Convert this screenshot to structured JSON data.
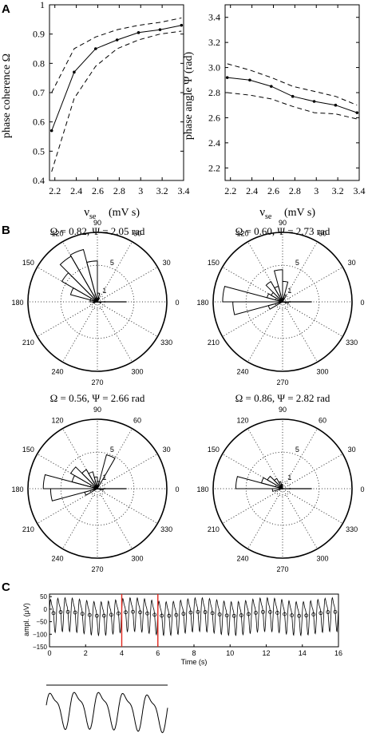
{
  "panel_labels": [
    "A",
    "B",
    "C"
  ],
  "chart_data": [
    {
      "id": "A-left",
      "type": "line",
      "xlabel": "ν",
      "xlabel_sub": "se",
      "xlabel_unit": "(mV s)",
      "ylabel": "phase coherence Ω",
      "xlim": [
        2.15,
        3.4
      ],
      "ylim": [
        0.4,
        1.0
      ],
      "xticks": [
        2.2,
        2.4,
        2.6,
        2.8,
        3.0,
        3.2,
        3.4
      ],
      "xtick_labels": [
        "2.2",
        "2.4",
        "2.6",
        "2.8",
        "3",
        "3.2",
        "3.4"
      ],
      "yticks": [
        0.4,
        0.5,
        0.6,
        0.7,
        0.8,
        0.9,
        1.0
      ],
      "ytick_labels": [
        "0.4",
        "0.5",
        "0.6",
        "0.7",
        "0.8",
        "0.9",
        "1"
      ],
      "x": [
        2.17,
        2.38,
        2.58,
        2.78,
        2.98,
        3.18,
        3.38
      ],
      "series": [
        {
          "style": "solid",
          "markers": true,
          "values": [
            0.57,
            0.77,
            0.85,
            0.88,
            0.905,
            0.915,
            0.93
          ]
        },
        {
          "style": "dashed",
          "markers": false,
          "values": [
            0.7,
            0.85,
            0.89,
            0.915,
            0.93,
            0.94,
            0.955
          ]
        },
        {
          "style": "dashed",
          "markers": false,
          "values": [
            0.43,
            0.68,
            0.79,
            0.85,
            0.88,
            0.9,
            0.91
          ]
        }
      ]
    },
    {
      "id": "A-right",
      "type": "line",
      "xlabel": "ν",
      "xlabel_sub": "se",
      "xlabel_unit": "(mV s)",
      "ylabel": "phase angle Ψ  (rad)",
      "xlim": [
        2.15,
        3.4
      ],
      "ylim": [
        2.1,
        3.5
      ],
      "xticks": [
        2.2,
        2.4,
        2.6,
        2.8,
        3.0,
        3.2,
        3.4
      ],
      "xtick_labels": [
        "2.2",
        "2.4",
        "2.6",
        "2.8",
        "3",
        "3.2",
        "3.4"
      ],
      "yticks": [
        2.2,
        2.4,
        2.6,
        2.8,
        3.0,
        3.2,
        3.4
      ],
      "ytick_labels": [
        "2.2",
        "2.4",
        "2.6",
        "2.8",
        "3.0",
        "3.2",
        "3.4"
      ],
      "x": [
        2.17,
        2.38,
        2.58,
        2.78,
        2.98,
        3.18,
        3.38
      ],
      "series": [
        {
          "style": "solid",
          "markers": true,
          "values": [
            2.92,
            2.9,
            2.85,
            2.77,
            2.73,
            2.7,
            2.64
          ]
        },
        {
          "style": "dashed",
          "markers": false,
          "values": [
            3.03,
            2.98,
            2.92,
            2.85,
            2.81,
            2.77,
            2.7
          ]
        },
        {
          "style": "dashed",
          "markers": false,
          "values": [
            2.8,
            2.78,
            2.75,
            2.69,
            2.64,
            2.63,
            2.59
          ]
        }
      ]
    },
    {
      "id": "B-1",
      "type": "polar-rose",
      "title": "Ω = 0.82,    Ψ = 2.05 rad",
      "angle_labels": [
        "0",
        "30",
        "60",
        "90",
        "120",
        "150",
        "180",
        "210",
        "240",
        "270",
        "300",
        "330"
      ],
      "radial_labels": [
        "1",
        "5"
      ],
      "rmax": 9.5,
      "bins_deg": [
        {
          "from": 90,
          "to": 105,
          "r": 5.6
        },
        {
          "from": 105,
          "to": 120,
          "r": 7.4
        },
        {
          "from": 120,
          "to": 135,
          "r": 7.2
        },
        {
          "from": 135,
          "to": 150,
          "r": 5.6
        },
        {
          "from": 150,
          "to": 165,
          "r": 3.8
        },
        {
          "from": 75,
          "to": 90,
          "r": 1.2
        },
        {
          "from": 165,
          "to": 180,
          "r": 1.0
        },
        {
          "from": 180,
          "to": 195,
          "r": 0.6
        },
        {
          "from": 345,
          "to": 360,
          "r": 0.5
        },
        {
          "from": 60,
          "to": 75,
          "r": 0.6
        }
      ]
    },
    {
      "id": "B-2",
      "type": "polar-rose",
      "title": "Ω = 0.60,    Ψ = 2.73 rad",
      "angle_labels": [
        "0",
        "30",
        "60",
        "90",
        "120",
        "150",
        "180",
        "210",
        "240",
        "270",
        "300",
        "330"
      ],
      "radial_labels": [
        "1",
        "5"
      ],
      "rmax": 9.5,
      "bins_deg": [
        {
          "from": 90,
          "to": 105,
          "r": 4.4
        },
        {
          "from": 105,
          "to": 120,
          "r": 2.2
        },
        {
          "from": 120,
          "to": 135,
          "r": 3.2
        },
        {
          "from": 135,
          "to": 150,
          "r": 1.8
        },
        {
          "from": 150,
          "to": 165,
          "r": 2.2
        },
        {
          "from": 165,
          "to": 180,
          "r": 8.2
        },
        {
          "from": 180,
          "to": 195,
          "r": 6.8
        },
        {
          "from": 195,
          "to": 210,
          "r": 2.0
        },
        {
          "from": 75,
          "to": 90,
          "r": 2.8
        },
        {
          "from": 60,
          "to": 75,
          "r": 1.0
        },
        {
          "from": 345,
          "to": 360,
          "r": 0.8
        }
      ]
    },
    {
      "id": "B-3",
      "type": "polar-rose",
      "title": "Ω = 0.56,    Ψ = 2.66 rad",
      "angle_labels": [
        "0",
        "30",
        "60",
        "90",
        "120",
        "150",
        "180",
        "210",
        "240",
        "270",
        "300",
        "330"
      ],
      "radial_labels": [
        "1",
        "5"
      ],
      "rmax": 9.5,
      "bins_deg": [
        {
          "from": 165,
          "to": 180,
          "r": 7.4
        },
        {
          "from": 180,
          "to": 195,
          "r": 6.4
        },
        {
          "from": 150,
          "to": 165,
          "r": 3.6
        },
        {
          "from": 135,
          "to": 150,
          "r": 4.2
        },
        {
          "from": 120,
          "to": 135,
          "r": 3.0
        },
        {
          "from": 105,
          "to": 120,
          "r": 2.4
        },
        {
          "from": 90,
          "to": 105,
          "r": 1.6
        },
        {
          "from": 60,
          "to": 75,
          "r": 4.8
        },
        {
          "from": 75,
          "to": 90,
          "r": 1.0
        },
        {
          "from": 195,
          "to": 210,
          "r": 1.8
        },
        {
          "from": 345,
          "to": 360,
          "r": 0.8
        }
      ]
    },
    {
      "id": "B-4",
      "type": "polar-rose",
      "title": "Ω = 0.86,    Ψ = 2.82 rad",
      "angle_labels": [
        "0",
        "30",
        "60",
        "90",
        "120",
        "150",
        "180",
        "210",
        "240",
        "270",
        "300",
        "330"
      ],
      "radial_labels": [
        "1",
        "5"
      ],
      "rmax": 9.5,
      "bins_deg": [
        {
          "from": 165,
          "to": 180,
          "r": 6.4
        },
        {
          "from": 150,
          "to": 165,
          "r": 3.0
        },
        {
          "from": 135,
          "to": 150,
          "r": 2.4
        },
        {
          "from": 120,
          "to": 135,
          "r": 1.6
        },
        {
          "from": 180,
          "to": 195,
          "r": 1.4
        },
        {
          "from": 105,
          "to": 120,
          "r": 1.0
        },
        {
          "from": 90,
          "to": 105,
          "r": 0.6
        }
      ]
    },
    {
      "id": "C-top",
      "type": "line",
      "xlabel": "Time (s)",
      "ylabel": "ampl. (μV)",
      "xlim": [
        0,
        16
      ],
      "ylim": [
        -150,
        60
      ],
      "xticks": [
        0,
        2,
        4,
        6,
        8,
        10,
        12,
        14,
        16
      ],
      "xtick_labels": [
        "0",
        "2",
        "4",
        "6",
        "8",
        "10",
        "12",
        "14",
        "16"
      ],
      "yticks": [
        50,
        0,
        -50,
        -100,
        -150
      ],
      "ytick_labels": [
        "50",
        "0",
        "−50",
        "−100",
        "−150"
      ],
      "marker_lines_x": [
        4.0,
        6.0
      ],
      "oscillation": {
        "period_s": 0.4,
        "peak_uV": 40,
        "trough_uV": -120,
        "mean_uV": -20
      },
      "circle_markers": true
    },
    {
      "id": "C-bottom",
      "type": "line",
      "description_ref": "zoom of segment between red lines",
      "xlim": [
        4.0,
        6.0
      ],
      "ylim": [
        -150,
        60
      ]
    }
  ]
}
